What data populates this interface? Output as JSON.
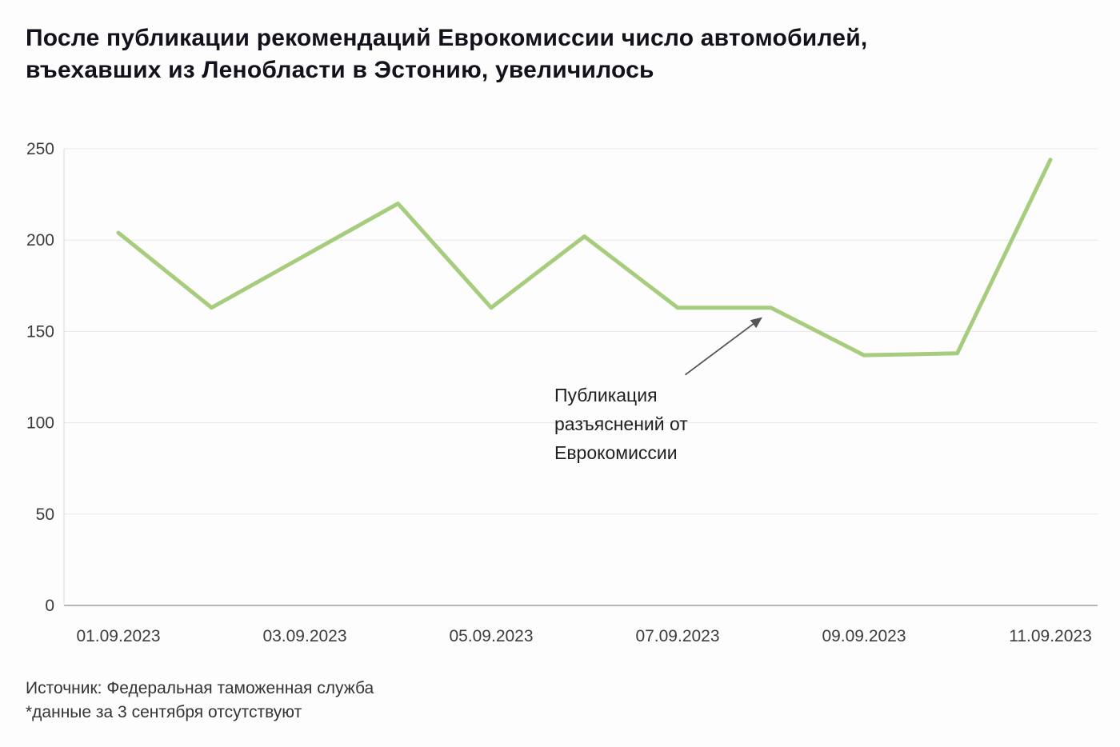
{
  "title": [
    "После публикации рекомендаций Еврокомиссии число автомобилей,",
    "въехавших из Ленобласти в Эстонию, увеличилось"
  ],
  "footer": {
    "source": "Источник: Федеральная таможенная служба",
    "note": "*данные за 3 сентября отсутствуют"
  },
  "chart_data": {
    "type": "line",
    "title": "После публикации рекомендаций Еврокомиссии число автомобилей, въехавших из Ленобласти в Эстонию, увеличилось",
    "xlabel": "",
    "ylabel": "",
    "x_days": [
      1,
      2,
      4,
      5,
      6,
      7,
      8,
      9,
      10,
      11
    ],
    "x_dates": [
      "01.09.2023",
      "02.09.2023",
      "04.09.2023",
      "05.09.2023",
      "06.09.2023",
      "07.09.2023",
      "08.09.2023",
      "09.09.2023",
      "10.09.2023",
      "11.09.2023"
    ],
    "values": [
      204,
      163,
      220,
      163,
      202,
      163,
      163,
      137,
      138,
      244
    ],
    "missing_data_note": "данные за 3 сентября отсутствуют",
    "x_ticks": [
      {
        "day": 1,
        "label": "01.09.2023"
      },
      {
        "day": 3,
        "label": "03.09.2023"
      },
      {
        "day": 5,
        "label": "05.09.2023"
      },
      {
        "day": 7,
        "label": "07.09.2023"
      },
      {
        "day": 9,
        "label": "09.09.2023"
      },
      {
        "day": 11,
        "label": "11.09.2023"
      }
    ],
    "y_ticks": [
      0,
      50,
      100,
      150,
      200,
      250
    ],
    "ylim": [
      0,
      250
    ],
    "xlim": [
      1,
      11
    ],
    "grid": "horizontal",
    "legend": "none",
    "line_color": "#a6cd7e",
    "axis_color": "#9aa0a6",
    "grid_color": "#e7e7e7",
    "tick_label_color": "#3c3c3c",
    "annotation": {
      "lines": [
        "Публикация",
        "разъяснений от",
        "Еврокомиссии"
      ],
      "target_day": 8,
      "target_value": 163,
      "arrow_color": "#555555",
      "text_color": "#1f1f1f"
    }
  }
}
